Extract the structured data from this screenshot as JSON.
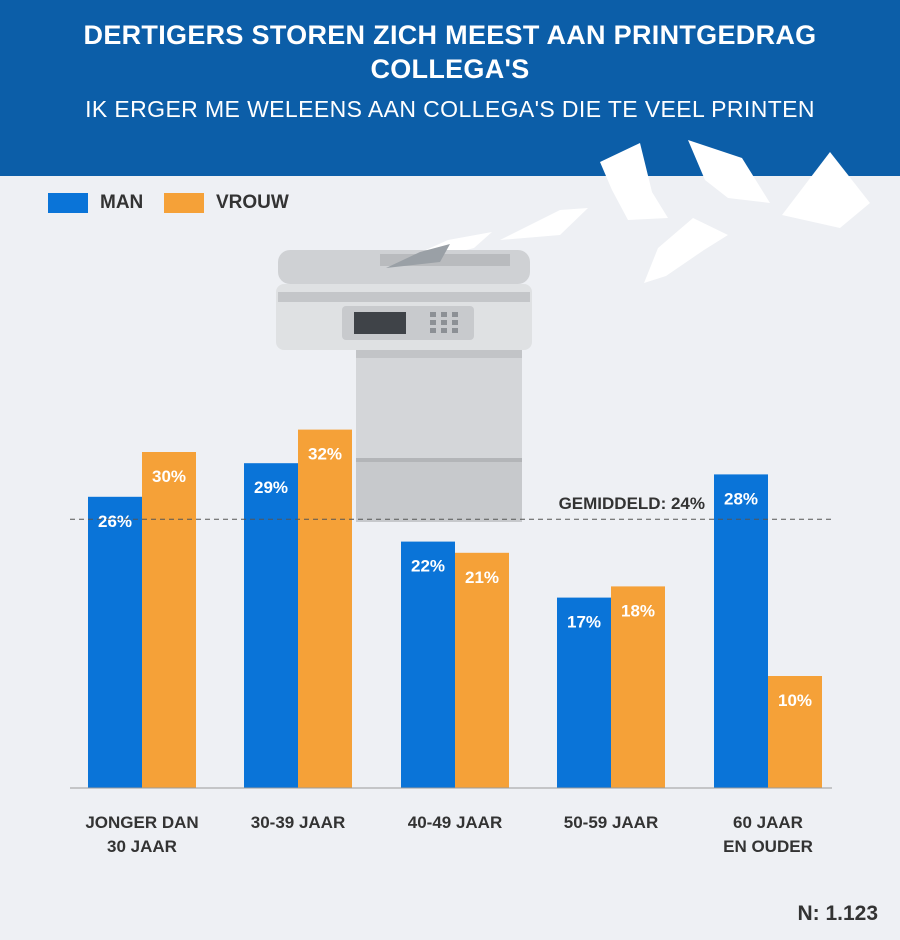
{
  "header": {
    "title_line1": "DERTIGERS STOREN ZICH MEEST AAN PRINTGEDRAG",
    "title_line2": "COLLEGA'S",
    "subtitle": "IK ERGER ME WELEENS AAN COLLEGA'S DIE TE VEEL PRINTEN"
  },
  "colors": {
    "header_bg": "#0c5ea8",
    "man": "#0a74d8",
    "vrouw": "#f5a138",
    "background": "#eef0f4"
  },
  "chart_data": {
    "type": "bar",
    "title": "DERTIGERS STOREN ZICH MEEST AAN PRINTGEDRAG COLLEGA'S",
    "subtitle": "IK ERGER ME WELEENS AAN COLLEGA'S DIE TE VEEL PRINTEN",
    "categories": [
      [
        "JONGER DAN",
        "30 JAAR"
      ],
      [
        "30-39 JAAR"
      ],
      [
        "40-49 JAAR"
      ],
      [
        "50-59 JAAR"
      ],
      [
        "60 JAAR",
        "EN OUDER"
      ]
    ],
    "series": [
      {
        "name": "MAN",
        "color": "#0a74d8",
        "values": [
          26,
          29,
          22,
          17,
          28
        ],
        "labels": [
          "26%",
          "29%",
          "22%",
          "17%",
          "28%"
        ]
      },
      {
        "name": "VROUW",
        "color": "#f5a138",
        "values": [
          30,
          32,
          21,
          18,
          10
        ],
        "labels": [
          "30%",
          "32%",
          "21%",
          "18%",
          "10%"
        ]
      }
    ],
    "reference_line": {
      "value": 24,
      "label": "GEMIDDELD: 24%"
    },
    "legend_position": "top-left",
    "grid": false,
    "ylim": [
      0,
      39
    ],
    "xlabel": "",
    "ylabel": ""
  },
  "footer": {
    "n": "N: 1.123"
  }
}
